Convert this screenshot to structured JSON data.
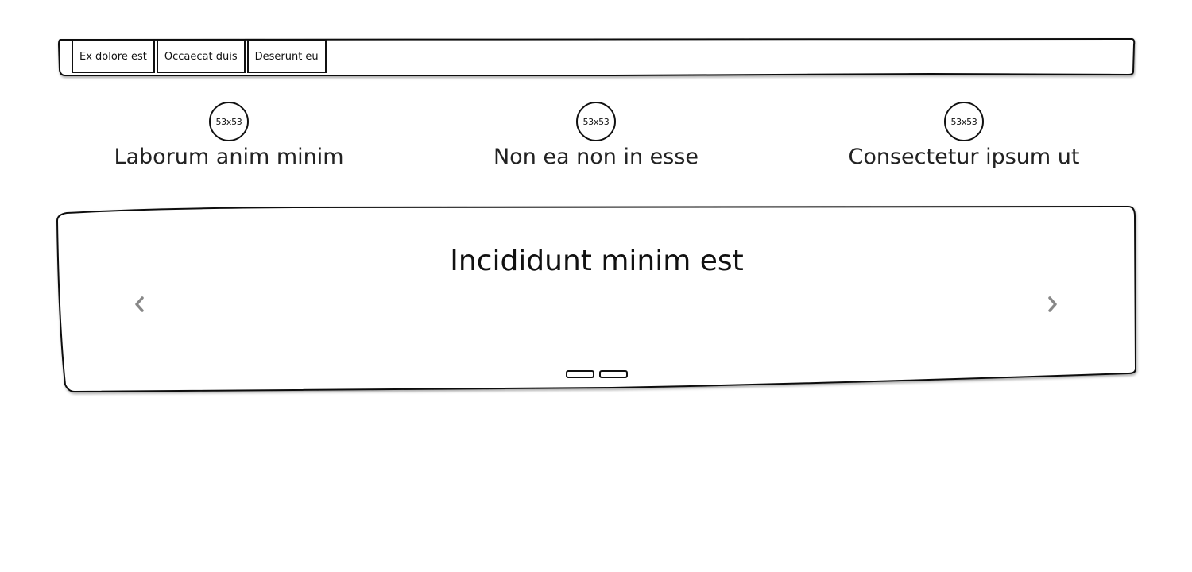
{
  "nav": {
    "tabs": [
      {
        "label": "Ex dolore est"
      },
      {
        "label": "Occaecat duis"
      },
      {
        "label": "Deserunt eu"
      }
    ]
  },
  "features": [
    {
      "image_label": "53x53",
      "caption": "Laborum anim minim"
    },
    {
      "image_label": "53x53",
      "caption": "Non ea non in esse"
    },
    {
      "image_label": "53x53",
      "caption": "Consectetur ipsum ut"
    }
  ],
  "carousel": {
    "title": "Incididunt minim est",
    "prev_icon": "chevron-left-icon",
    "next_icon": "chevron-right-icon",
    "slide_count": 2
  },
  "colors": {
    "stroke": "#111111",
    "arrow": "#888888",
    "background": "#ffffff"
  }
}
